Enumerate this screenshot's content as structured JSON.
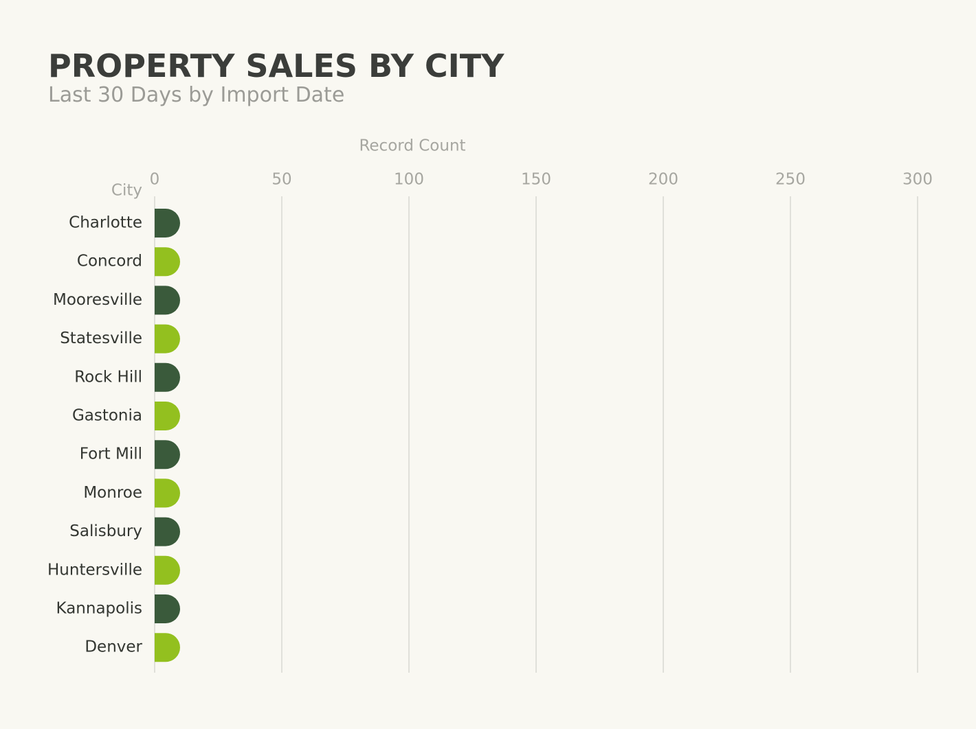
{
  "chart_data": {
    "type": "hbar",
    "title": "PROPERTY SALES BY CITY",
    "subtitle": "Last 30 Days by Import Date",
    "x_label": "Record Count",
    "y_label": "City",
    "categories": [
      "Charlotte",
      "Concord",
      "Mooresville",
      "Statesville",
      "Rock Hill",
      "Gastonia",
      "Fort Mill",
      "Monroe",
      "Salisbury",
      "Huntersville",
      "Kannapolis",
      "Denver"
    ],
    "values": [
      10,
      10,
      10,
      10,
      10,
      10,
      10,
      10,
      10,
      10,
      10,
      10
    ],
    "colors": [
      "#3a5a3b",
      "#93c01f",
      "#3a5a3b",
      "#93c01f",
      "#3a5a3b",
      "#93c01f",
      "#3a5a3b",
      "#93c01f",
      "#3a5a3b",
      "#93c01f",
      "#3a5a3b",
      "#93c01f"
    ],
    "xlim": [
      0,
      300
    ],
    "xticks": [
      0,
      50,
      100,
      150,
      200,
      250,
      300
    ],
    "grid": true
  }
}
